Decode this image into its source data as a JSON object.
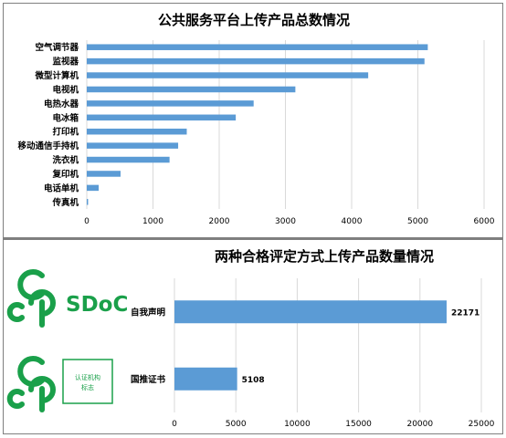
{
  "logos": {
    "sdoc": {
      "mark": "CGP",
      "label": "SDoC",
      "color": "#1aa04a"
    },
    "cert": {
      "mark": "CGP",
      "label_line1": "认证机构",
      "label_line2": "标志",
      "color": "#1aa04a"
    }
  },
  "chart_data": [
    {
      "type": "bar",
      "orientation": "horizontal",
      "title": "公共服务平台上传产品总数情况",
      "categories": [
        "空气调节器",
        "监视器",
        "微型计算机",
        "电视机",
        "电热水器",
        "电冰箱",
        "打印机",
        "移动通信手持机",
        "洗衣机",
        "复印机",
        "电话单机",
        "传真机"
      ],
      "values": [
        5150,
        5100,
        4250,
        3150,
        2520,
        2250,
        1510,
        1380,
        1250,
        510,
        180,
        20
      ],
      "xlim": [
        0,
        6000
      ],
      "xticks": [
        0,
        1000,
        2000,
        3000,
        4000,
        5000,
        6000
      ],
      "grid": true,
      "bar_color": "#5b9bd5"
    },
    {
      "type": "bar",
      "orientation": "horizontal",
      "title": "两种合格评定方式上传产品数量情况",
      "categories": [
        "自我声明",
        "国推证书"
      ],
      "values": [
        22171,
        5108
      ],
      "data_labels": [
        "22171",
        "5108"
      ],
      "xlim": [
        0,
        25000
      ],
      "xticks": [
        0,
        5000,
        10000,
        15000,
        20000,
        25000
      ],
      "grid": true,
      "bar_color": "#5b9bd5"
    }
  ]
}
